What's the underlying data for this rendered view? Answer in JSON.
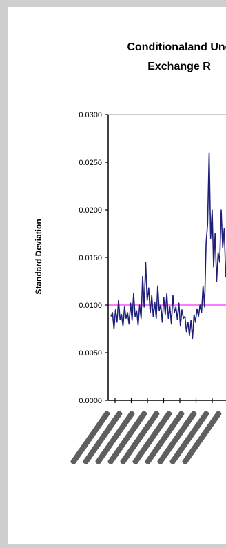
{
  "chart_data": {
    "type": "line",
    "title": [
      "Conditionaland Unc",
      "Exchange R"
    ],
    "xlabel": "",
    "ylabel": "Standard Deviation",
    "ylim": [
      0.0,
      0.03
    ],
    "yticks": [
      "0.0000",
      "0.0050",
      "0.0100",
      "0.0150",
      "0.0200",
      "0.0250",
      "0.0300"
    ],
    "grid": false,
    "legend": "none",
    "series": [
      {
        "kind": "conditional",
        "color": "#1f1f7a",
        "values": [
          0.0088,
          0.0092,
          0.0075,
          0.0095,
          0.0082,
          0.0105,
          0.0085,
          0.009,
          0.0078,
          0.0098,
          0.0086,
          0.0092,
          0.008,
          0.0102,
          0.0084,
          0.0112,
          0.0088,
          0.0094,
          0.0079,
          0.01,
          0.0086,
          0.013,
          0.0098,
          0.0145,
          0.0105,
          0.0118,
          0.0092,
          0.011,
          0.0088,
          0.0103,
          0.0086,
          0.012,
          0.0094,
          0.01,
          0.0082,
          0.0108,
          0.009,
          0.0112,
          0.0086,
          0.0098,
          0.008,
          0.011,
          0.0092,
          0.0098,
          0.0085,
          0.0102,
          0.0078,
          0.0095,
          0.0086,
          0.0088,
          0.0072,
          0.0082,
          0.0068,
          0.0084,
          0.0065,
          0.009,
          0.0082,
          0.0096,
          0.0088,
          0.01,
          0.0092,
          0.012,
          0.0098,
          0.0165,
          0.0185,
          0.026,
          0.017,
          0.02,
          0.014,
          0.0175,
          0.0125,
          0.0155,
          0.0145,
          0.02,
          0.016,
          0.018,
          0.013,
          0.015,
          0.0115,
          0.0125,
          0.01
        ]
      },
      {
        "kind": "unconditional",
        "color": "#ff66ff",
        "values": [
          0.01,
          0.01
        ]
      }
    ]
  }
}
